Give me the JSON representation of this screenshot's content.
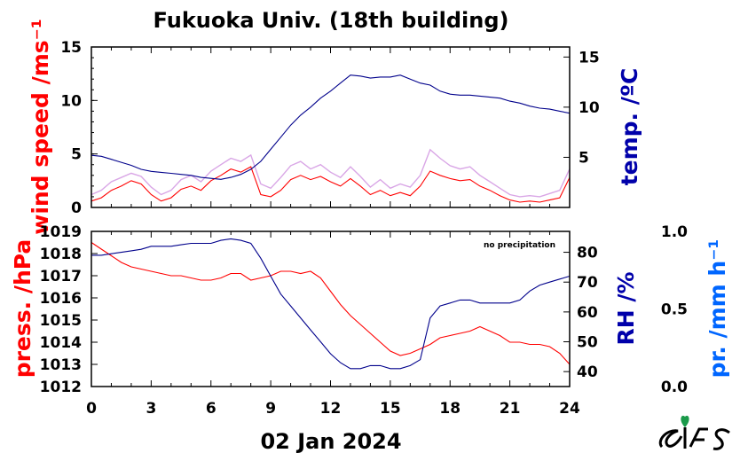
{
  "chart_data": [
    {
      "type": "line",
      "title": "Fukuoka Univ. (18th building)",
      "x_ticks": [
        "0",
        "3",
        "6",
        "9",
        "12",
        "15",
        "18",
        "21",
        "24"
      ],
      "xlim": [
        0,
        24
      ],
      "y_left": {
        "label": "wind speed /ms⁻¹",
        "ticks": [
          "0",
          "5",
          "10",
          "15"
        ],
        "lim": [
          0,
          15
        ],
        "color": "#ff0000"
      },
      "y_right": {
        "label": "temp. /ºC",
        "ticks": [
          "5",
          "10",
          "15"
        ],
        "lim": [
          0,
          16
        ],
        "color": "#0000aa"
      },
      "series": [
        {
          "name": "temp. /ºC",
          "axis": "right",
          "color": "#00008b",
          "x": [
            0,
            0.5,
            1,
            1.5,
            2,
            2.5,
            3,
            3.5,
            4,
            4.5,
            5,
            5.5,
            6,
            6.5,
            7,
            7.5,
            8,
            8.5,
            9,
            9.5,
            10,
            10.5,
            11,
            11.5,
            12,
            12.5,
            13,
            13.5,
            14,
            14.5,
            15,
            15.5,
            16,
            16.5,
            17,
            17.5,
            18,
            18.5,
            19,
            19.5,
            20,
            20.5,
            21,
            21.5,
            22,
            22.5,
            23,
            23.5,
            24
          ],
          "values": [
            5.2,
            5.1,
            4.8,
            4.5,
            4.2,
            3.8,
            3.6,
            3.5,
            3.4,
            3.3,
            3.2,
            3.0,
            2.9,
            2.8,
            3.0,
            3.3,
            3.8,
            4.6,
            5.8,
            7.0,
            8.2,
            9.2,
            10.0,
            10.9,
            11.6,
            12.4,
            13.2,
            13.1,
            12.9,
            13.0,
            13.0,
            13.2,
            12.8,
            12.4,
            12.2,
            11.6,
            11.3,
            11.2,
            11.2,
            11.1,
            11.0,
            10.9,
            10.6,
            10.4,
            10.1,
            9.9,
            9.8,
            9.6,
            9.4
          ]
        },
        {
          "name": "wind speed /ms⁻¹",
          "axis": "left",
          "color": "#ff0000",
          "x": [
            0,
            0.5,
            1,
            1.5,
            2,
            2.5,
            3,
            3.5,
            4,
            4.5,
            5,
            5.5,
            6,
            6.5,
            7,
            7.5,
            8,
            8.5,
            9,
            9.5,
            10,
            10.5,
            11,
            11.5,
            12,
            12.5,
            13,
            13.5,
            14,
            14.5,
            15,
            15.5,
            16,
            16.5,
            17,
            17.5,
            18,
            18.5,
            19,
            19.5,
            20,
            20.5,
            21,
            21.5,
            22,
            22.5,
            23,
            23.5,
            24
          ],
          "values": [
            0.6,
            0.9,
            1.6,
            2.0,
            2.5,
            2.2,
            1.2,
            0.6,
            0.9,
            1.7,
            2.0,
            1.6,
            2.5,
            3.0,
            3.6,
            3.3,
            3.8,
            1.2,
            1.0,
            1.6,
            2.6,
            3.0,
            2.6,
            2.9,
            2.4,
            2.0,
            2.7,
            2.0,
            1.2,
            1.6,
            1.1,
            1.4,
            1.1,
            2.0,
            3.4,
            3.0,
            2.7,
            2.5,
            2.6,
            2.0,
            1.6,
            1.1,
            0.7,
            0.5,
            0.6,
            0.5,
            0.7,
            0.9,
            2.8
          ]
        },
        {
          "name": "gust",
          "axis": "left",
          "color": "#cc88dd",
          "x": [
            0,
            0.5,
            1,
            1.5,
            2,
            2.5,
            3,
            3.5,
            4,
            4.5,
            5,
            5.5,
            6,
            6.5,
            7,
            7.5,
            8,
            8.5,
            9,
            9.5,
            10,
            10.5,
            11,
            11.5,
            12,
            12.5,
            13,
            13.5,
            14,
            14.5,
            15,
            15.5,
            16,
            16.5,
            17,
            17.5,
            18,
            18.5,
            19,
            19.5,
            20,
            20.5,
            21,
            21.5,
            22,
            22.5,
            23,
            23.5,
            24
          ],
          "values": [
            1.2,
            1.6,
            2.4,
            2.8,
            3.2,
            2.9,
            1.9,
            1.2,
            1.6,
            2.6,
            3.0,
            2.4,
            3.4,
            4.0,
            4.6,
            4.3,
            4.9,
            2.2,
            1.8,
            2.8,
            3.9,
            4.3,
            3.6,
            4.0,
            3.3,
            2.8,
            3.8,
            2.9,
            1.9,
            2.6,
            1.8,
            2.2,
            1.9,
            3.0,
            5.4,
            4.6,
            3.9,
            3.6,
            3.8,
            3.0,
            2.4,
            1.8,
            1.2,
            1.0,
            1.1,
            1.0,
            1.3,
            1.6,
            3.6
          ]
        }
      ]
    },
    {
      "type": "line",
      "annotation": "no precipitation",
      "x_ticks": [
        "0",
        "3",
        "6",
        "9",
        "12",
        "15",
        "18",
        "21",
        "24"
      ],
      "xlim": [
        0,
        24
      ],
      "xlabel": "02 Jan 2024",
      "y_left": {
        "label": "press. /hPa",
        "ticks": [
          "1012",
          "1013",
          "1014",
          "1015",
          "1016",
          "1017",
          "1018",
          "1019"
        ],
        "lim": [
          1012,
          1019
        ],
        "color": "#ff0000"
      },
      "y_right": {
        "label": "RH /%",
        "ticks": [
          "40",
          "50",
          "60",
          "70",
          "80"
        ],
        "lim": [
          35,
          87
        ],
        "color": "#0000aa"
      },
      "y_far": {
        "label": "pr. /mm h⁻¹",
        "ticks": [
          "0.0",
          "0.5",
          "1.0"
        ],
        "lim": [
          0,
          1
        ],
        "color": "#0066ff"
      },
      "series": [
        {
          "name": "press. /hPa",
          "axis": "left",
          "color": "#ff0000",
          "x": [
            0,
            0.5,
            1,
            1.5,
            2,
            2.5,
            3,
            3.5,
            4,
            4.5,
            5,
            5.5,
            6,
            6.5,
            7,
            7.5,
            8,
            8.5,
            9,
            9.5,
            10,
            10.5,
            11,
            11.5,
            12,
            12.5,
            13,
            13.5,
            14,
            14.5,
            15,
            15.5,
            16,
            16.5,
            17,
            17.5,
            18,
            18.5,
            19,
            19.5,
            20,
            20.5,
            21,
            21.5,
            22,
            22.5,
            23,
            23.5,
            24
          ],
          "values": [
            1018.5,
            1018.2,
            1017.9,
            1017.6,
            1017.4,
            1017.3,
            1017.2,
            1017.1,
            1017.0,
            1017.0,
            1016.9,
            1016.8,
            1016.8,
            1016.9,
            1017.1,
            1017.1,
            1016.8,
            1016.9,
            1017.0,
            1017.2,
            1017.2,
            1017.1,
            1017.2,
            1016.9,
            1016.3,
            1015.7,
            1015.2,
            1014.8,
            1014.4,
            1014.0,
            1013.6,
            1013.4,
            1013.5,
            1013.7,
            1013.9,
            1014.2,
            1014.3,
            1014.4,
            1014.5,
            1014.7,
            1014.5,
            1014.3,
            1014.0,
            1014.0,
            1013.9,
            1013.9,
            1013.8,
            1013.5,
            1013.0
          ]
        },
        {
          "name": "RH /%",
          "axis": "right",
          "color": "#00008b",
          "x": [
            0,
            0.5,
            1,
            1.5,
            2,
            2.5,
            3,
            3.5,
            4,
            4.5,
            5,
            5.5,
            6,
            6.5,
            7,
            7.5,
            8,
            8.5,
            9,
            9.5,
            10,
            10.5,
            11,
            11.5,
            12,
            12.5,
            13,
            13.5,
            14,
            14.5,
            15,
            15.5,
            16,
            16.5,
            17,
            17.5,
            18,
            18.5,
            19,
            19.5,
            20,
            20.5,
            21,
            21.5,
            22,
            22.5,
            23,
            23.5,
            24
          ],
          "values": [
            79,
            79,
            79.5,
            80,
            80.5,
            81,
            82,
            82,
            82,
            82.5,
            83,
            83,
            83,
            84,
            84.5,
            84,
            83,
            78,
            72,
            66,
            62,
            58,
            54,
            50,
            46,
            43,
            41,
            41,
            42,
            42,
            41,
            41,
            42,
            44,
            58,
            62,
            63,
            64,
            64,
            63,
            63,
            63,
            63,
            64,
            67,
            69,
            70,
            71,
            72
          ]
        }
      ]
    }
  ]
}
